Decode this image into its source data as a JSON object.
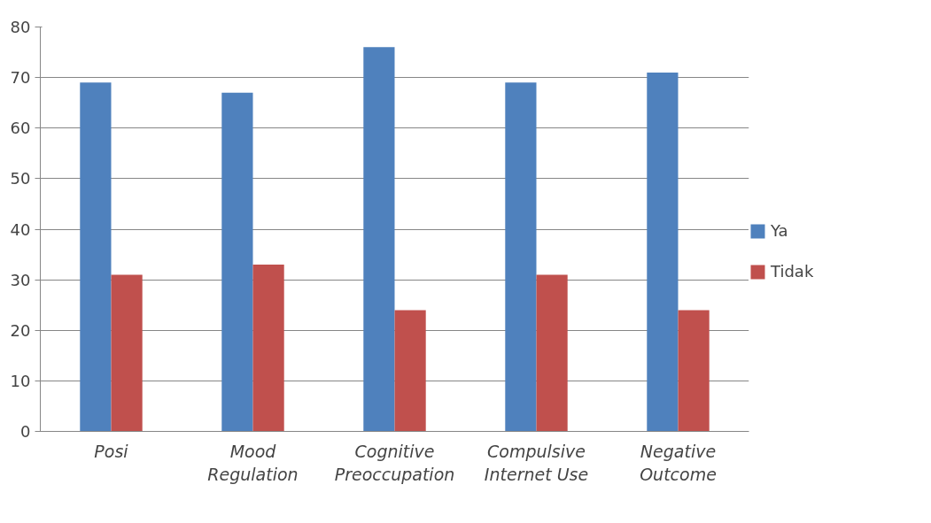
{
  "chart_data": {
    "type": "bar",
    "categories": [
      "Posi",
      "Mood\nRegulation",
      "Cognitive\nPreoccupation",
      "Compulsive\nInternet Use",
      "Negative\nOutcome"
    ],
    "series": [
      {
        "name": "Ya",
        "color": "#4f81bd",
        "values": [
          69,
          67,
          76,
          69,
          71
        ]
      },
      {
        "name": "Tidak",
        "color": "#c0504d",
        "values": [
          31,
          33,
          24,
          31,
          24
        ]
      }
    ],
    "ylim": [
      0,
      80
    ],
    "yticks": [
      0,
      10,
      20,
      30,
      40,
      50,
      60,
      70,
      80
    ],
    "grid": "y",
    "legend": "right"
  }
}
